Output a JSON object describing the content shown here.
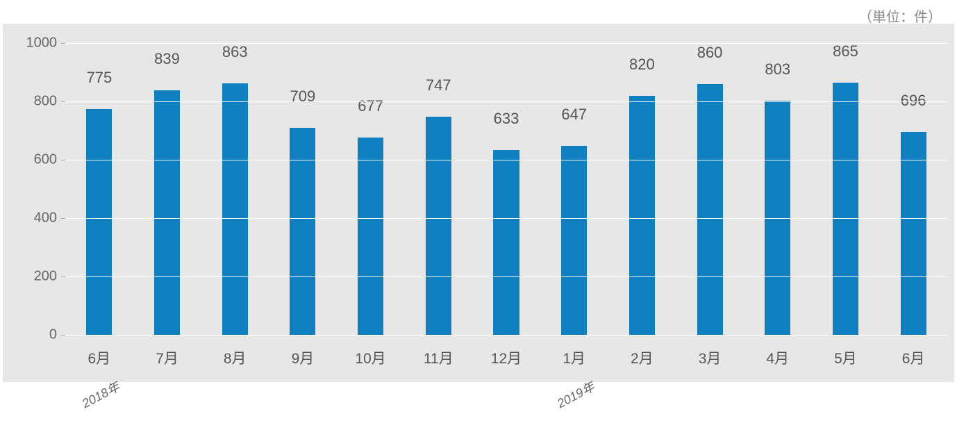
{
  "unit_label": "（単位：件）",
  "chart": {
    "type": "bar",
    "background_color": "#e7e7e7",
    "grid_color": "#ffffff",
    "bar_color": "#0f7fbf",
    "value_label_color": "#555",
    "axis_label_color": "#666",
    "ylim": [
      0,
      1000
    ],
    "ytick_step": 200,
    "bar_width_ratio": 0.38,
    "label_fontsize": 21,
    "value_fontsize": 22,
    "categories": [
      "6月",
      "7月",
      "8月",
      "9月",
      "10月",
      "11月",
      "12月",
      "1月",
      "2月",
      "3月",
      "4月",
      "5月",
      "6月"
    ],
    "values": [
      775,
      839,
      863,
      709,
      677,
      747,
      633,
      647,
      820,
      860,
      803,
      865,
      696
    ],
    "year_markers": [
      {
        "label": "2018年",
        "at_index": 0
      },
      {
        "label": "2019年",
        "at_index": 7
      }
    ]
  }
}
